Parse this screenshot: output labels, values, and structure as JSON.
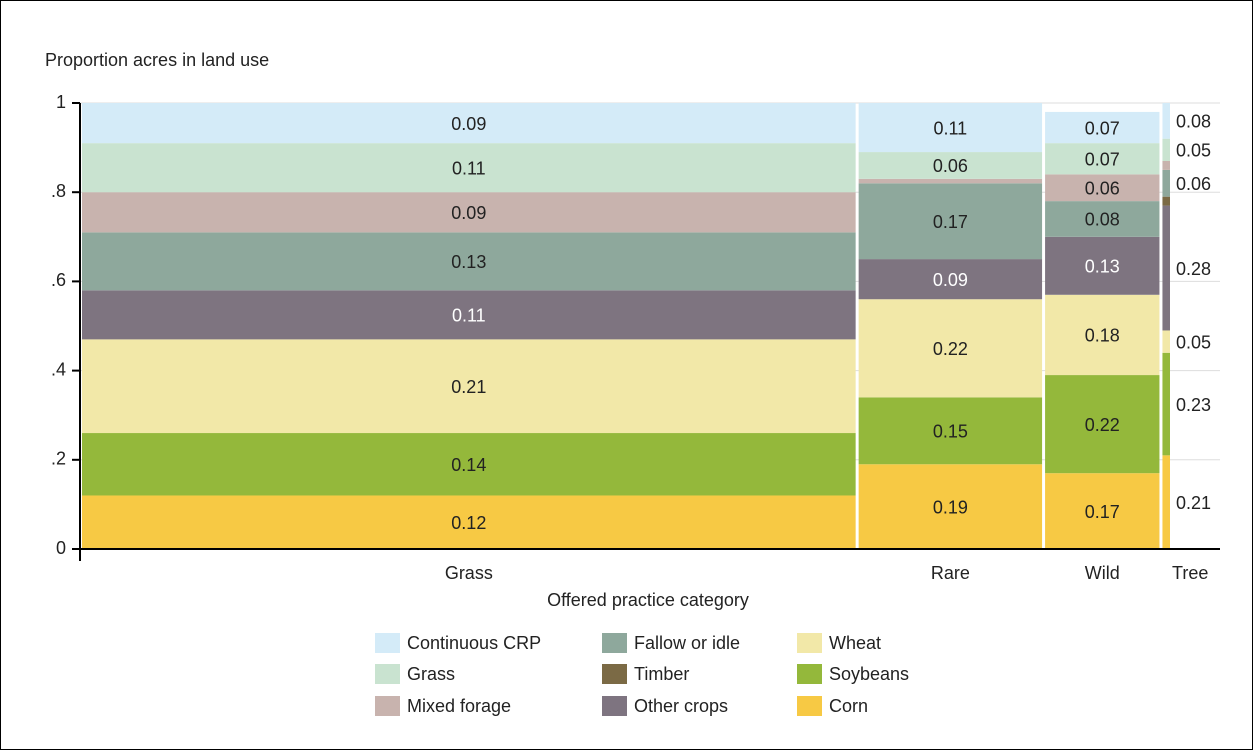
{
  "chart_data": {
    "type": "mosaic",
    "ylabel": "Proportion acres in land use",
    "xlabel": "Offered practice category",
    "categories": [
      "Grass",
      "Rare",
      "Wild",
      "Tree"
    ],
    "widths": [
      0.717,
      0.17,
      0.106,
      0.007
    ],
    "ylim": [
      0,
      1
    ],
    "yticks": [
      0,
      {
        "value": 0.2,
        "label": ".2"
      },
      {
        "value": 0.4,
        "label": ".4"
      },
      {
        "value": 0.6,
        "label": ".6"
      },
      {
        "value": 0.8,
        "label": ".8"
      },
      1
    ],
    "grid": true,
    "series": [
      {
        "name": "Continuous CRP",
        "color": "#d4ebf8",
        "values": [
          0.09,
          0.11,
          0.07,
          0.08
        ]
      },
      {
        "name": "Grass",
        "color": "#c9e3d0",
        "values": [
          0.11,
          0.06,
          0.07,
          0.05
        ]
      },
      {
        "name": "Mixed forage",
        "color": "#c8b3ae",
        "values": [
          0.09,
          0.01,
          0.06,
          0.02
        ]
      },
      {
        "name": "Fallow or idle",
        "color": "#8ea89c",
        "values": [
          0.13,
          0.17,
          0.08,
          0.06
        ]
      },
      {
        "name": "Timber",
        "color": "#7b6a45",
        "values": [
          0,
          0,
          0,
          0.02
        ]
      },
      {
        "name": "Other crops",
        "color": "#7e7480",
        "values": [
          0.11,
          0.09,
          0.13,
          0.28
        ]
      },
      {
        "name": "Wheat",
        "color": "#f2e8a8",
        "values": [
          0.21,
          0.22,
          0.18,
          0.05
        ]
      },
      {
        "name": "Soybeans",
        "color": "#94b83b",
        "values": [
          0.14,
          0.15,
          0.22,
          0.23
        ]
      },
      {
        "name": "Corn",
        "color": "#f7c944",
        "values": [
          0.12,
          0.19,
          0.17,
          0.21
        ]
      }
    ]
  }
}
